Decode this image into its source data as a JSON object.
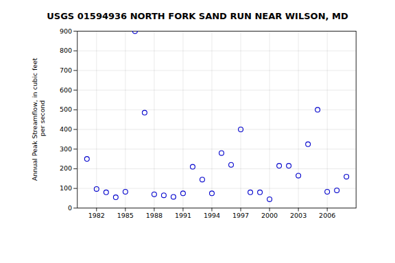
{
  "chart_data": {
    "type": "scatter",
    "title": "USGS 01594936 NORTH FORK SAND RUN NEAR WILSON, MD",
    "ylabel": "Annual Peak Streamflow, in cubic feet\n per second",
    "x": [
      1981,
      1982,
      1983,
      1984,
      1985,
      1986,
      1987,
      1988,
      1989,
      1990,
      1991,
      1992,
      1993,
      1994,
      1995,
      1996,
      1997,
      1998,
      1999,
      2000,
      2001,
      2002,
      2003,
      2004,
      2005,
      2006,
      2007,
      2008
    ],
    "values": [
      250,
      97,
      80,
      55,
      83,
      900,
      485,
      70,
      65,
      57,
      75,
      210,
      145,
      75,
      280,
      220,
      400,
      80,
      80,
      45,
      215,
      215,
      165,
      325,
      500,
      83,
      90,
      160
    ],
    "xlim": [
      1980,
      2009
    ],
    "ylim": [
      0,
      900
    ],
    "xticks": [
      1982,
      1985,
      1988,
      1991,
      1994,
      1997,
      2000,
      2003,
      2006
    ],
    "yticks": [
      0,
      100,
      200,
      300,
      400,
      500,
      600,
      700,
      800,
      900
    ],
    "color": "#0000CC",
    "marker": "circle",
    "grid": true
  }
}
